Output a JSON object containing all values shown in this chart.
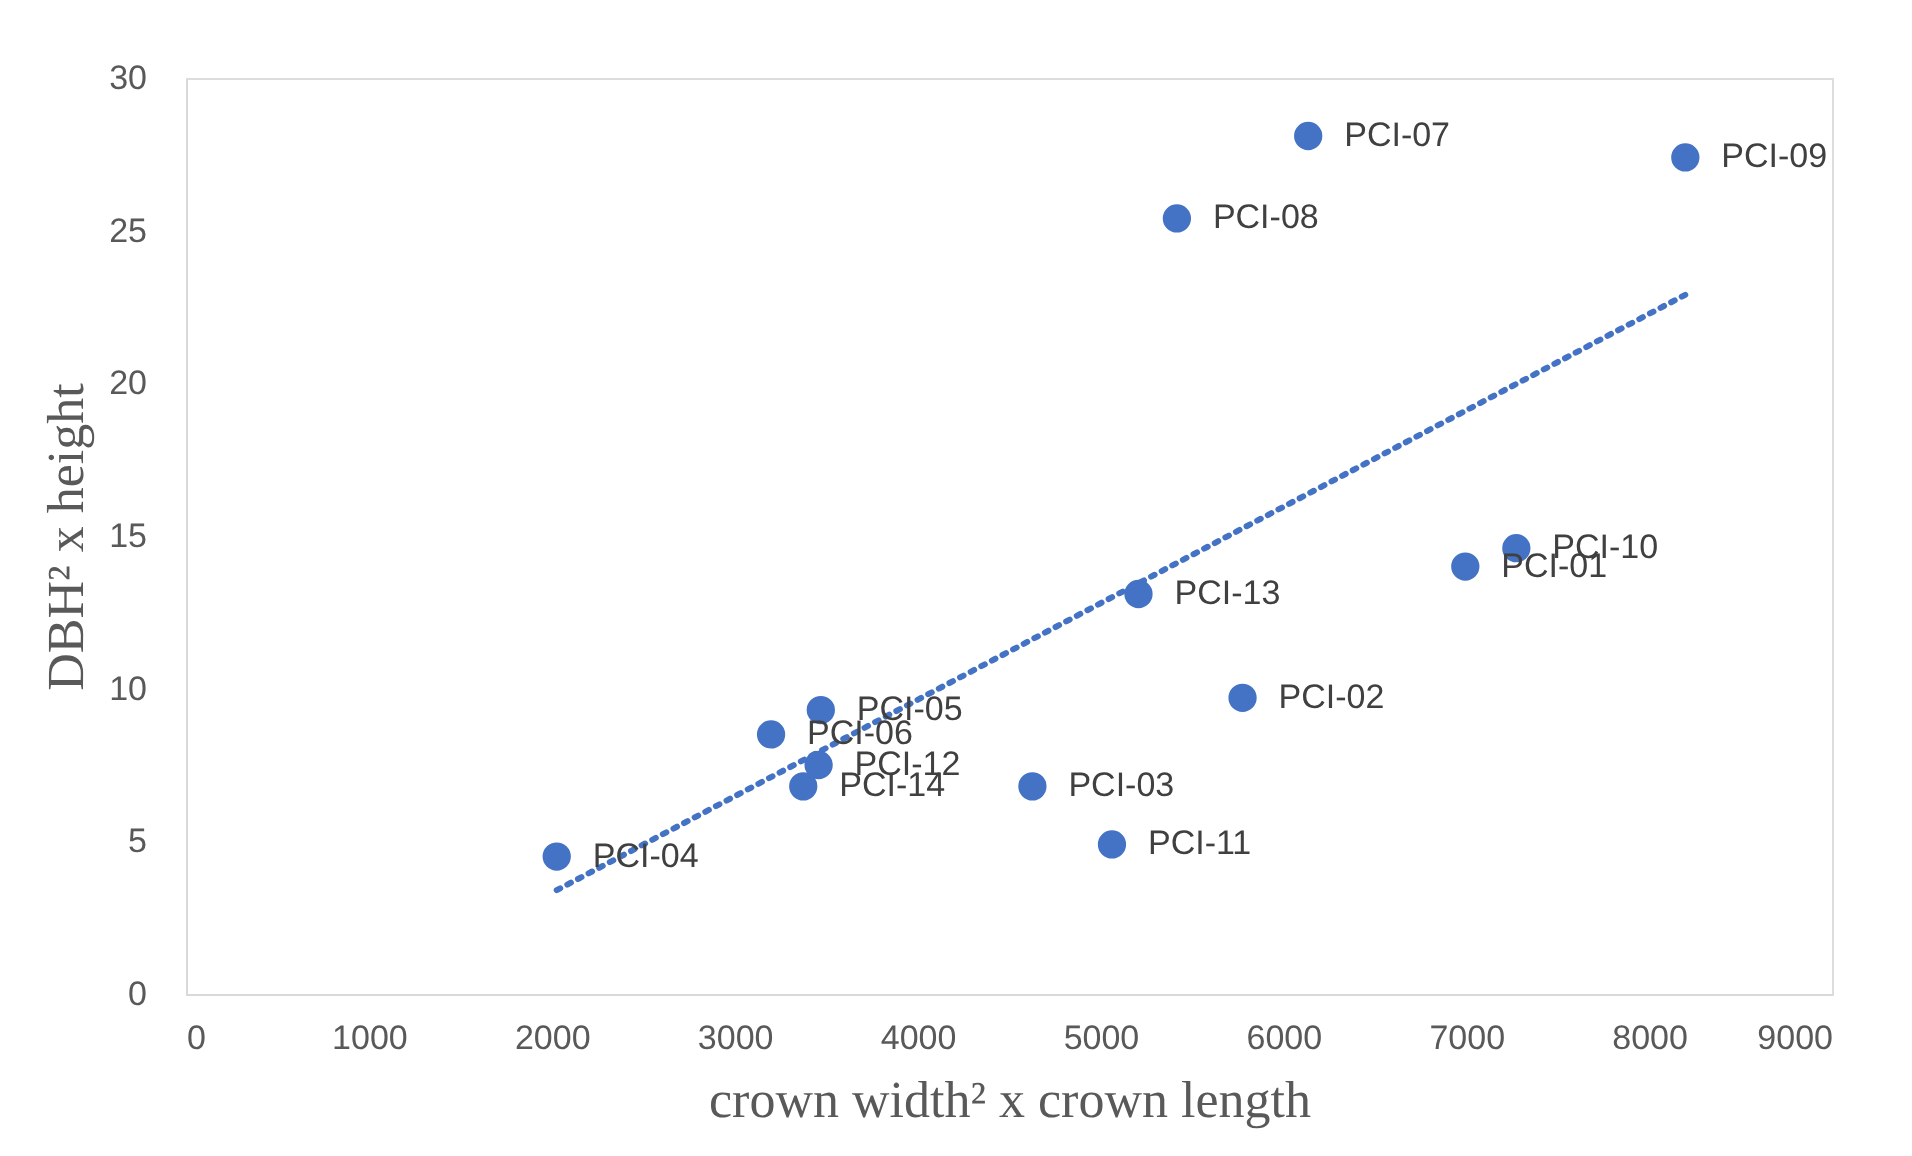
{
  "chart_data": {
    "type": "scatter",
    "xlabel": "crown width² x crown length",
    "ylabel": "DBH² x height",
    "xlim": [
      0,
      9000
    ],
    "xticks": [
      0,
      1000,
      2000,
      3000,
      4000,
      5000,
      6000,
      7000,
      8000,
      9000
    ],
    "ylim": [
      0,
      30
    ],
    "yticks": [
      0,
      5,
      10,
      15,
      20,
      25,
      30
    ],
    "grid": false,
    "series": [
      {
        "color": "#4472c4",
        "marker": "circle",
        "x": [
          6995,
          5777,
          4628,
          2027,
          3471,
          3199,
          6136,
          5418,
          8198,
          7274,
          5063,
          3459,
          5208,
          3375
        ],
        "values": [
          14.0,
          9.7,
          6.8,
          4.5,
          9.3,
          8.5,
          28.1,
          25.4,
          27.4,
          14.6,
          4.9,
          7.5,
          13.1,
          6.8
        ]
      },
      {
        "type": "line",
        "color": "#4472c4",
        "line_style": "dotted",
        "x": [
          2027,
          8198
        ],
        "values": [
          3.4,
          22.9
        ]
      }
    ],
    "annotations": [
      {
        "text": "PCI-01",
        "x": 6995,
        "y": 14.0
      },
      {
        "text": "PCI-02",
        "x": 5777,
        "y": 9.7
      },
      {
        "text": "PCI-03",
        "x": 4628,
        "y": 6.8
      },
      {
        "text": "PCI-04",
        "x": 2027,
        "y": 4.5
      },
      {
        "text": "PCI-05",
        "x": 3471,
        "y": 9.3
      },
      {
        "text": "PCI-06",
        "x": 3199,
        "y": 8.5
      },
      {
        "text": "PCI-07",
        "x": 6136,
        "y": 28.1
      },
      {
        "text": "PCI-08",
        "x": 5418,
        "y": 25.4
      },
      {
        "text": "PCI-09",
        "x": 8198,
        "y": 27.4
      },
      {
        "text": "PCI-10",
        "x": 7274,
        "y": 14.6
      },
      {
        "text": "PCI-11",
        "x": 5063,
        "y": 4.9
      },
      {
        "text": "PCI-12",
        "x": 3459,
        "y": 7.5
      },
      {
        "text": "PCI-13",
        "x": 5208,
        "y": 13.1
      },
      {
        "text": "PCI-14",
        "x": 3375,
        "y": 6.8
      }
    ]
  }
}
